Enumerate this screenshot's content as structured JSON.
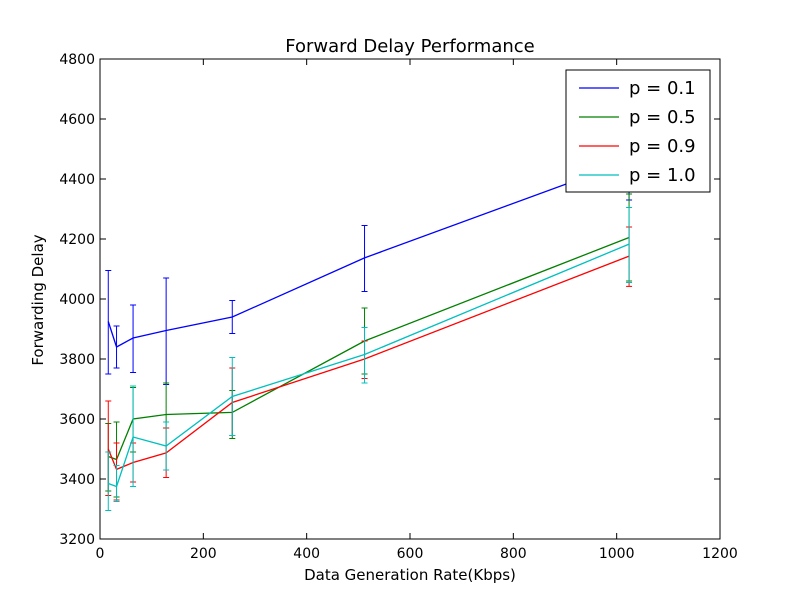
{
  "chart_data": {
    "type": "line",
    "title": "Forward Delay Performance",
    "xlabel": "Data Generation Rate(Kbps)",
    "ylabel": "Forwarding Delay",
    "xlim": [
      0,
      1200
    ],
    "ylim": [
      3200,
      4800
    ],
    "xticks": [
      0,
      200,
      400,
      600,
      800,
      1000,
      1200
    ],
    "yticks": [
      3200,
      3400,
      3600,
      3800,
      4000,
      4200,
      4400,
      4600,
      4800
    ],
    "x": [
      16,
      32,
      64,
      128,
      256,
      512,
      1024
    ],
    "legend_position": "top-right",
    "grid": false,
    "series": [
      {
        "name": "p = 0.1",
        "color": "#0000ff",
        "values": [
          3925,
          3840,
          3870,
          3895,
          3940,
          4137,
          4460
        ],
        "err_low": [
          3750,
          3770,
          3755,
          3715,
          3885,
          4025,
          4330
        ],
        "err_high": [
          4095,
          3910,
          3980,
          4070,
          3995,
          4245,
          4580
        ]
      },
      {
        "name": "p = 0.5",
        "color": "#008000",
        "values": [
          3475,
          3465,
          3600,
          3615,
          3622,
          3860,
          4205
        ],
        "err_low": [
          3360,
          3340,
          3490,
          3570,
          3535,
          3750,
          4060
        ],
        "err_high": [
          3585,
          3590,
          3705,
          3720,
          3695,
          3970,
          4350
        ]
      },
      {
        "name": "p = 0.9",
        "color": "#ff0000",
        "values": [
          3500,
          3432,
          3455,
          3487,
          3655,
          3800,
          4143
        ],
        "err_low": [
          3345,
          3330,
          3390,
          3405,
          3545,
          3735,
          4042
        ],
        "err_high": [
          3660,
          3520,
          3520,
          3570,
          3770,
          3860,
          4240
        ]
      },
      {
        "name": "p = 1.0",
        "color": "#00bfbf",
        "values": [
          3385,
          3375,
          3540,
          3510,
          3675,
          3815,
          4183
        ],
        "err_low": [
          3295,
          3325,
          3375,
          3430,
          3545,
          3720,
          4055
        ],
        "err_high": [
          3490,
          3445,
          3710,
          3590,
          3805,
          3905,
          4305
        ]
      }
    ]
  }
}
